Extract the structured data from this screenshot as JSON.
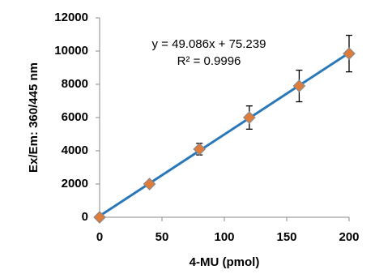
{
  "chart_data": {
    "type": "scatter",
    "x_label": "4-MU (pmol)",
    "y_label": "Ex/Em: 360/445 nm",
    "x": [
      0,
      40,
      80,
      120,
      160,
      200
    ],
    "values": [
      0,
      2000,
      4100,
      6000,
      7900,
      9850
    ],
    "errors": [
      0,
      100,
      350,
      700,
      950,
      1100
    ],
    "color": "#e07b39",
    "trendline": {
      "equation": "y = 49.086x + 75.239",
      "r_squared": "R² = 0.9996",
      "slope": 49.086,
      "intercept": 75.239,
      "color": "#2a78b8"
    },
    "xlim": [
      0,
      200
    ],
    "xticks": [
      0,
      50,
      100,
      150,
      200
    ],
    "ylim": [
      0,
      12000
    ],
    "yticks": [
      0,
      2000,
      4000,
      6000,
      8000,
      10000,
      12000
    ],
    "grid": false
  }
}
